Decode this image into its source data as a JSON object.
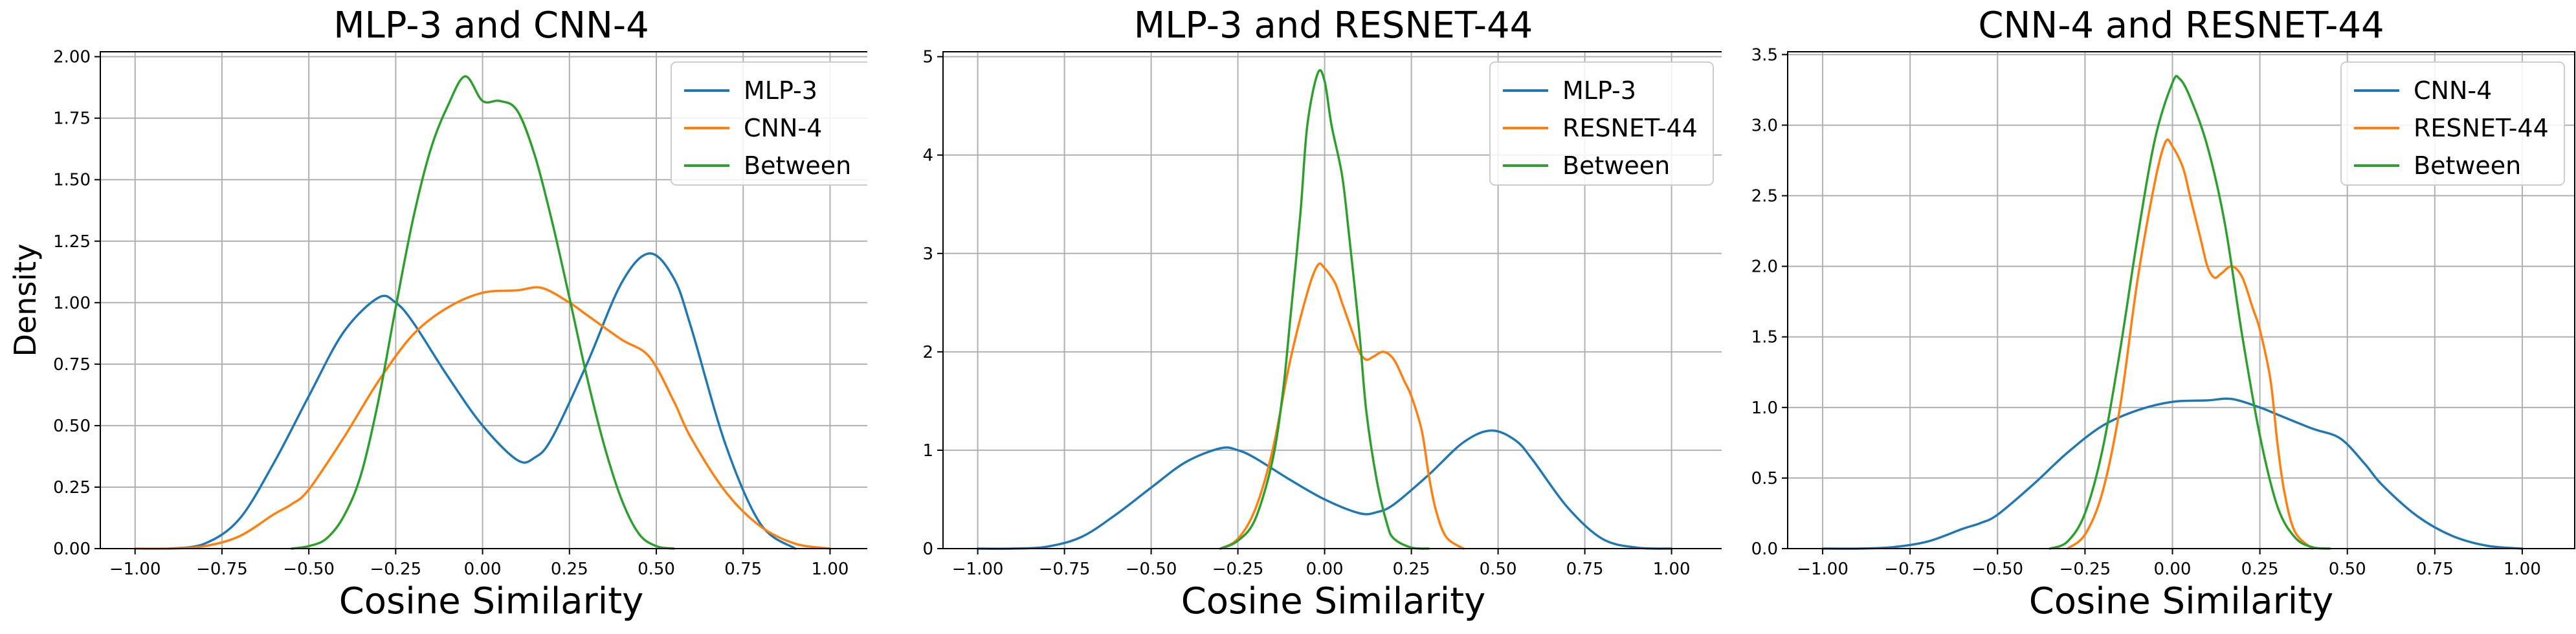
{
  "colors": {
    "blue": "#1f77b4",
    "orange": "#ff7f0e",
    "green": "#2ca02c",
    "grid": "#b0b0b0"
  },
  "chart_data": [
    {
      "type": "line",
      "title": "MLP-3 and CNN-4",
      "xlabel": "Cosine Similarity",
      "ylabel": "Density",
      "xlim": [
        -1.1,
        1.15
      ],
      "ylim": [
        0,
        2.02
      ],
      "xticks": [
        -1.0,
        -0.75,
        -0.5,
        -0.25,
        0.0,
        0.25,
        0.5,
        0.75,
        1.0
      ],
      "xtick_labels": [
        "−1.00",
        "−0.75",
        "−0.50",
        "−0.25",
        "0.00",
        "0.25",
        "0.50",
        "0.75",
        "1.00"
      ],
      "yticks": [
        0,
        0.25,
        0.5,
        0.75,
        1.0,
        1.25,
        1.5,
        1.75,
        2.0
      ],
      "ytick_labels": [
        "0.00",
        "0.25",
        "0.50",
        "0.75",
        "1.00",
        "1.25",
        "1.50",
        "1.75",
        "2.00"
      ],
      "grid": true,
      "legend": "top-right",
      "series": [
        {
          "name": "MLP-3",
          "color": "#1f77b4",
          "x": [
            -0.9,
            -0.8,
            -0.7,
            -0.6,
            -0.5,
            -0.4,
            -0.3,
            -0.25,
            -0.2,
            -0.1,
            0.0,
            0.1,
            0.15,
            0.2,
            0.3,
            0.4,
            0.48,
            0.55,
            0.6,
            0.7,
            0.8,
            0.9
          ],
          "y": [
            0.0,
            0.02,
            0.12,
            0.35,
            0.62,
            0.88,
            1.02,
            1.0,
            0.92,
            0.7,
            0.5,
            0.36,
            0.37,
            0.45,
            0.75,
            1.08,
            1.2,
            1.1,
            0.9,
            0.42,
            0.1,
            0.0
          ]
        },
        {
          "name": "CNN-4",
          "color": "#ff7f0e",
          "x": [
            -1.0,
            -0.9,
            -0.8,
            -0.7,
            -0.6,
            -0.55,
            -0.5,
            -0.4,
            -0.3,
            -0.2,
            -0.1,
            0.0,
            0.1,
            0.17,
            0.25,
            0.3,
            0.4,
            0.48,
            0.55,
            0.6,
            0.7,
            0.8,
            0.9,
            1.0
          ],
          "y": [
            0.0,
            0.0,
            0.01,
            0.05,
            0.14,
            0.18,
            0.24,
            0.45,
            0.68,
            0.87,
            0.98,
            1.04,
            1.05,
            1.06,
            1.0,
            0.95,
            0.85,
            0.78,
            0.6,
            0.45,
            0.23,
            0.09,
            0.02,
            0.0
          ]
        },
        {
          "name": "Between",
          "color": "#2ca02c",
          "x": [
            -0.55,
            -0.5,
            -0.45,
            -0.4,
            -0.35,
            -0.3,
            -0.25,
            -0.2,
            -0.15,
            -0.1,
            -0.05,
            0.0,
            0.05,
            0.1,
            0.15,
            0.2,
            0.25,
            0.3,
            0.35,
            0.4,
            0.45,
            0.5,
            0.55
          ],
          "y": [
            0.0,
            0.01,
            0.04,
            0.13,
            0.3,
            0.6,
            0.98,
            1.34,
            1.62,
            1.8,
            1.92,
            1.82,
            1.82,
            1.78,
            1.6,
            1.33,
            1.02,
            0.7,
            0.42,
            0.2,
            0.06,
            0.01,
            0.0
          ]
        }
      ]
    },
    {
      "type": "line",
      "title": "MLP-3 and RESNET-44",
      "xlabel": "Cosine Similarity",
      "ylabel": "",
      "xlim": [
        -1.1,
        1.15
      ],
      "ylim": [
        0,
        5.05
      ],
      "xticks": [
        -1.0,
        -0.75,
        -0.5,
        -0.25,
        0.0,
        0.25,
        0.5,
        0.75,
        1.0
      ],
      "xtick_labels": [
        "−1.00",
        "−0.75",
        "−0.50",
        "−0.25",
        "0.00",
        "0.25",
        "0.50",
        "0.75",
        "1.00"
      ],
      "yticks": [
        0,
        1,
        2,
        3,
        4,
        5
      ],
      "ytick_labels": [
        "0",
        "1",
        "2",
        "3",
        "4",
        "5"
      ],
      "grid": true,
      "legend": "top-right",
      "series": [
        {
          "name": "MLP-3",
          "color": "#1f77b4",
          "x": [
            -1.0,
            -0.9,
            -0.8,
            -0.7,
            -0.6,
            -0.5,
            -0.4,
            -0.3,
            -0.25,
            -0.2,
            -0.1,
            0.0,
            0.1,
            0.15,
            0.2,
            0.3,
            0.4,
            0.48,
            0.55,
            0.6,
            0.7,
            0.8,
            0.9,
            1.0
          ],
          "y": [
            0.0,
            0.0,
            0.02,
            0.12,
            0.35,
            0.62,
            0.88,
            1.02,
            1.0,
            0.92,
            0.7,
            0.5,
            0.36,
            0.37,
            0.45,
            0.75,
            1.08,
            1.2,
            1.1,
            0.9,
            0.42,
            0.1,
            0.01,
            0.0
          ]
        },
        {
          "name": "RESNET-44",
          "color": "#ff7f0e",
          "x": [
            -0.3,
            -0.25,
            -0.2,
            -0.15,
            -0.1,
            -0.05,
            -0.02,
            0.0,
            0.03,
            0.05,
            0.08,
            0.1,
            0.12,
            0.14,
            0.17,
            0.2,
            0.23,
            0.25,
            0.28,
            0.3,
            0.32,
            0.35,
            0.4
          ],
          "y": [
            0.0,
            0.1,
            0.4,
            1.0,
            1.9,
            2.6,
            2.88,
            2.85,
            2.7,
            2.5,
            2.2,
            2.0,
            1.92,
            1.95,
            2.0,
            1.92,
            1.7,
            1.55,
            1.2,
            0.75,
            0.4,
            0.12,
            0.0
          ]
        },
        {
          "name": "Between",
          "color": "#2ca02c",
          "x": [
            -0.3,
            -0.25,
            -0.2,
            -0.15,
            -0.12,
            -0.1,
            -0.07,
            -0.05,
            -0.02,
            0.0,
            0.02,
            0.05,
            0.07,
            0.1,
            0.12,
            0.15,
            0.18,
            0.2,
            0.25,
            0.3
          ],
          "y": [
            0.0,
            0.08,
            0.3,
            0.9,
            1.6,
            2.3,
            3.4,
            4.3,
            4.83,
            4.75,
            4.3,
            3.8,
            3.2,
            2.2,
            1.4,
            0.7,
            0.25,
            0.1,
            0.01,
            0.0
          ]
        }
      ]
    },
    {
      "type": "line",
      "title": "CNN-4 and RESNET-44",
      "xlabel": "Cosine Similarity",
      "ylabel": "",
      "xlim": [
        -1.1,
        1.15
      ],
      "ylim": [
        0,
        3.52
      ],
      "xticks": [
        -1.0,
        -0.75,
        -0.5,
        -0.25,
        0.0,
        0.25,
        0.5,
        0.75,
        1.0
      ],
      "xtick_labels": [
        "−1.00",
        "−0.75",
        "−0.50",
        "−0.25",
        "0.00",
        "0.25",
        "0.50",
        "0.75",
        "1.00"
      ],
      "yticks": [
        0,
        0.5,
        1.0,
        1.5,
        2.0,
        2.5,
        3.0,
        3.5
      ],
      "ytick_labels": [
        "0.0",
        "0.5",
        "1.0",
        "1.5",
        "2.0",
        "2.5",
        "3.0",
        "3.5"
      ],
      "grid": true,
      "legend": "top-right",
      "series": [
        {
          "name": "CNN-4",
          "color": "#1f77b4",
          "x": [
            -1.0,
            -0.9,
            -0.8,
            -0.7,
            -0.6,
            -0.55,
            -0.5,
            -0.4,
            -0.3,
            -0.2,
            -0.1,
            0.0,
            0.1,
            0.17,
            0.25,
            0.3,
            0.4,
            0.48,
            0.55,
            0.6,
            0.7,
            0.8,
            0.9,
            1.0
          ],
          "y": [
            0.0,
            0.0,
            0.01,
            0.05,
            0.14,
            0.18,
            0.24,
            0.45,
            0.68,
            0.87,
            0.98,
            1.04,
            1.05,
            1.06,
            1.0,
            0.95,
            0.85,
            0.78,
            0.6,
            0.45,
            0.23,
            0.09,
            0.02,
            0.0
          ]
        },
        {
          "name": "RESNET-44",
          "color": "#ff7f0e",
          "x": [
            -0.3,
            -0.25,
            -0.2,
            -0.15,
            -0.1,
            -0.05,
            -0.02,
            0.0,
            0.03,
            0.05,
            0.08,
            0.1,
            0.12,
            0.14,
            0.17,
            0.2,
            0.23,
            0.25,
            0.28,
            0.3,
            0.32,
            0.35,
            0.4
          ],
          "y": [
            0.0,
            0.1,
            0.4,
            1.0,
            1.9,
            2.6,
            2.88,
            2.85,
            2.7,
            2.5,
            2.2,
            2.0,
            1.92,
            1.95,
            2.0,
            1.92,
            1.7,
            1.55,
            1.2,
            0.75,
            0.4,
            0.12,
            0.0
          ]
        },
        {
          "name": "Between",
          "color": "#2ca02c",
          "x": [
            -0.35,
            -0.3,
            -0.25,
            -0.2,
            -0.15,
            -0.1,
            -0.05,
            0.0,
            0.02,
            0.05,
            0.1,
            0.15,
            0.2,
            0.25,
            0.3,
            0.35,
            0.4,
            0.45
          ],
          "y": [
            0.0,
            0.05,
            0.25,
            0.7,
            1.4,
            2.2,
            2.9,
            3.3,
            3.33,
            3.2,
            2.85,
            2.3,
            1.5,
            0.8,
            0.3,
            0.08,
            0.01,
            0.0
          ]
        }
      ]
    }
  ]
}
